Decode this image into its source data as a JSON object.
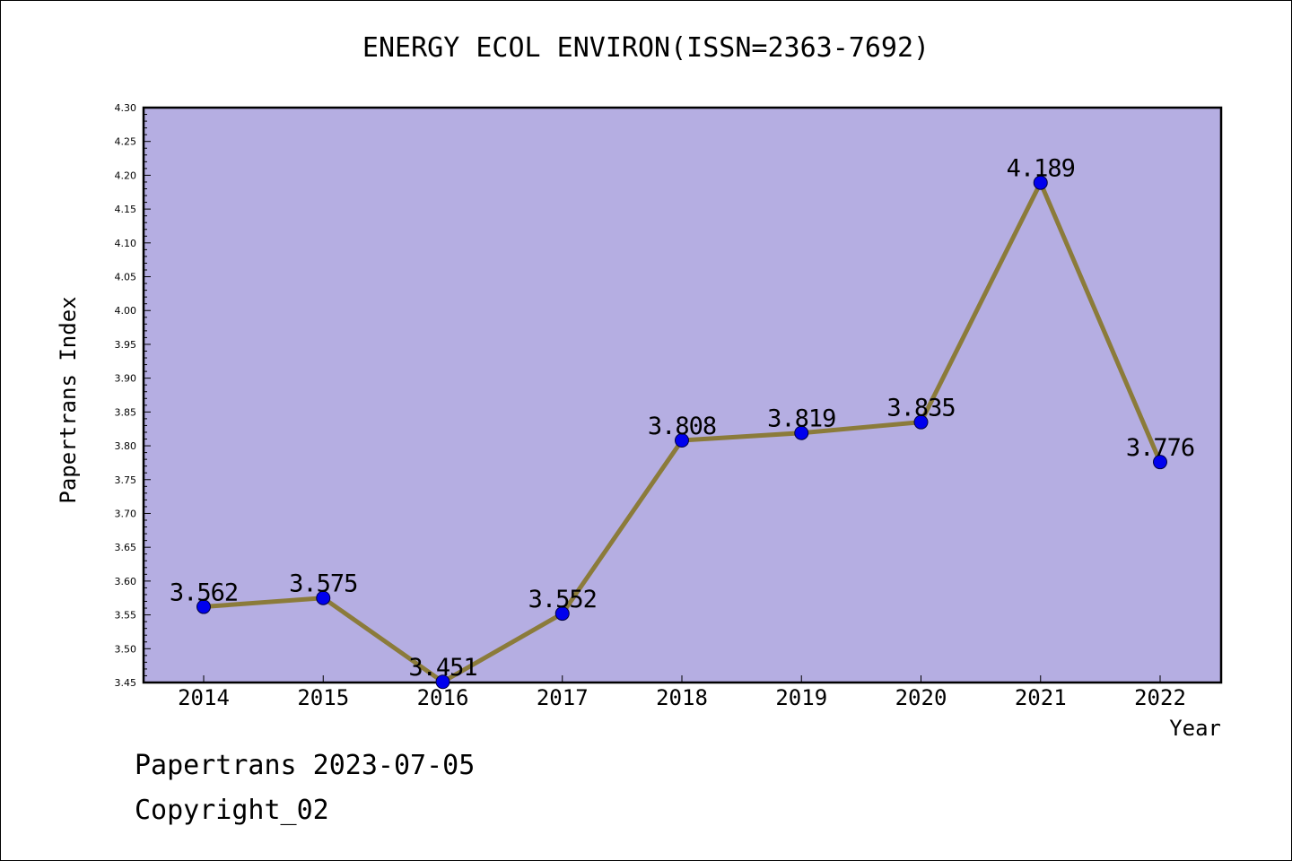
{
  "chart_data": {
    "type": "line",
    "title": "ENERGY ECOL ENVIRON(ISSN=2363-7692)",
    "xlabel": "Year",
    "ylabel": "Papertrans Index",
    "categories": [
      "2014",
      "2015",
      "2016",
      "2017",
      "2018",
      "2019",
      "2020",
      "2021",
      "2022"
    ],
    "series": [
      {
        "values": [
          3.562,
          3.575,
          3.451,
          3.552,
          3.808,
          3.819,
          3.835,
          4.189,
          3.776
        ],
        "labels": [
          "3.562",
          "3.575",
          "3.451",
          "3.552",
          "3.808",
          "3.819",
          "3.835",
          "4.189",
          "3.776"
        ]
      }
    ],
    "ylim": [
      3.45,
      4.3
    ],
    "yticks": [
      "3.45",
      "3.50",
      "3.55",
      "3.60",
      "3.65",
      "3.70",
      "3.75",
      "3.80",
      "3.85",
      "3.90",
      "3.95",
      "4.00",
      "4.05",
      "4.10",
      "4.15",
      "4.20",
      "4.25",
      "4.30"
    ],
    "grid": false,
    "colors": {
      "plot_background": "#b5aee2",
      "line": "#8b7b3a",
      "marker": "#0000ee",
      "axis": "#000000"
    }
  },
  "footer": {
    "date_text": "Papertrans 2023-07-05",
    "copyright_text": "Copyright_02"
  }
}
